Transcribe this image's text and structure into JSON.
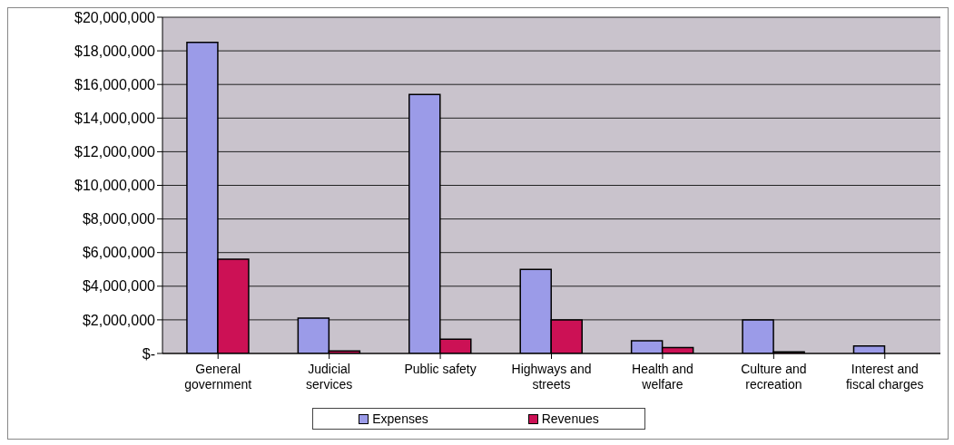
{
  "chart_data": {
    "type": "bar",
    "categories": [
      "General government",
      "Judicial services",
      "Public safety",
      "Highways and streets",
      "Health and welfare",
      "Culture and recreation",
      "Interest and fiscal charges"
    ],
    "series": [
      {
        "name": "Expenses",
        "color": "#9b9be8",
        "values": [
          18500000,
          2100000,
          15400000,
          5000000,
          750000,
          2000000,
          450000
        ]
      },
      {
        "name": "Revenues",
        "color": "#cc1155",
        "values": [
          5600000,
          150000,
          850000,
          2000000,
          350000,
          100000,
          0
        ]
      }
    ],
    "ylim": [
      0,
      20000000
    ],
    "yticks": [
      {
        "value": 0,
        "label": "$-"
      },
      {
        "value": 2000000,
        "label": "$2,000,000"
      },
      {
        "value": 4000000,
        "label": "$4,000,000"
      },
      {
        "value": 6000000,
        "label": "$6,000,000"
      },
      {
        "value": 8000000,
        "label": "$8,000,000"
      },
      {
        "value": 10000000,
        "label": "$10,000,000"
      },
      {
        "value": 12000000,
        "label": "$12,000,000"
      },
      {
        "value": 14000000,
        "label": "$14,000,000"
      },
      {
        "value": 16000000,
        "label": "$16,000,000"
      },
      {
        "value": 18000000,
        "label": "$18,000,000"
      },
      {
        "value": 20000000,
        "label": "$20,000,000"
      }
    ],
    "grid": "y",
    "legend": "bottom"
  }
}
